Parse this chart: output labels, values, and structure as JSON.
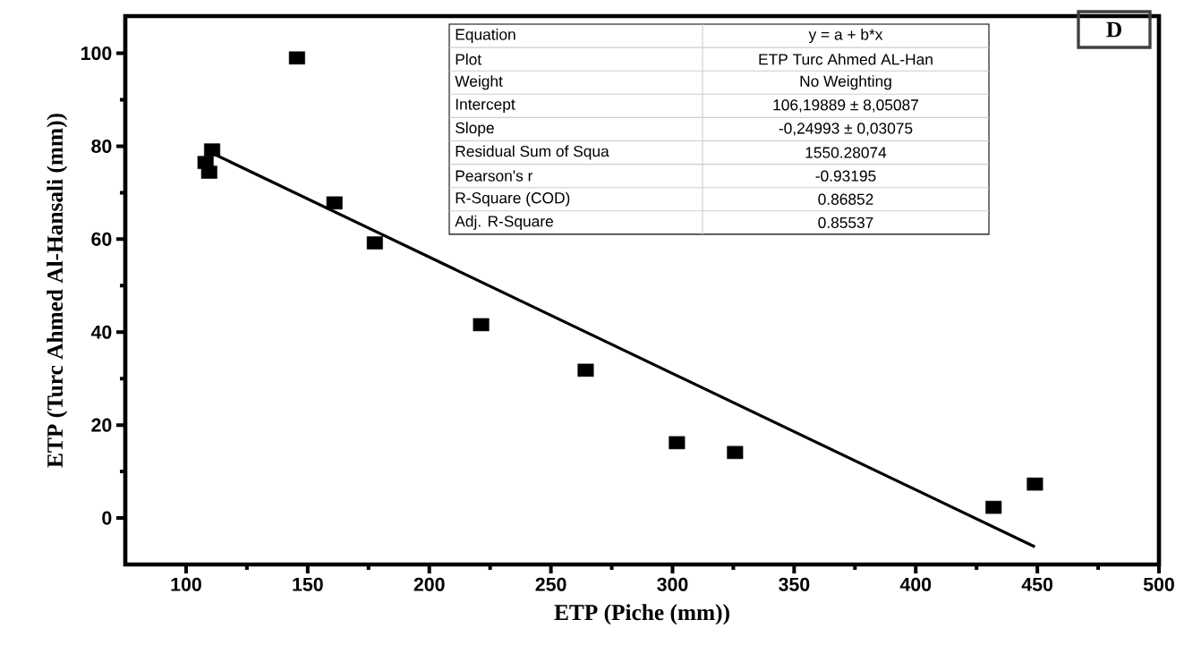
{
  "chart_data": {
    "type": "scatter",
    "xlabel": "ETP (Piche (mm))",
    "ylabel": "ETP (Turc Ahmed Al-Hansali (mm))",
    "xlim": [
      75,
      500
    ],
    "ylim": [
      -10,
      108
    ],
    "xticks": [
      100,
      150,
      200,
      250,
      300,
      350,
      400,
      450,
      500
    ],
    "yticks": [
      0,
      20,
      40,
      60,
      80,
      100
    ],
    "series": [
      {
        "marker": "square",
        "color": "#000000",
        "x": [
          108,
          110.7,
          109.5,
          145.6,
          161,
          177.6,
          221.3,
          264.3,
          301.8,
          325.7,
          432,
          449
        ],
        "values": [
          76.5,
          79.2,
          74.4,
          99.0,
          67.8,
          59.2,
          41.6,
          31.8,
          16.2,
          14.1,
          2.3,
          7.3
        ]
      },
      {
        "type": "line",
        "color": "#000000",
        "x": [
          110.7,
          449
        ],
        "values": [
          78.5,
          -6.2
        ]
      }
    ],
    "annotations": [
      "Equation",
      "y = a + b*x",
      "Plot",
      "ETP Turc  Ahmed AL-Han",
      "Weight",
      "No Weighting",
      "Intercept",
      "106,19889 ± 8,05087",
      "Slope",
      "-0,24993 ± 0,03075",
      "Residual Sum of Squa",
      "1550.28074",
      "Pearson's r",
      "-0.93195",
      "R-Square (COD)",
      "0.86852",
      "Adj. R-Square",
      "0.85537",
      "D"
    ]
  }
}
